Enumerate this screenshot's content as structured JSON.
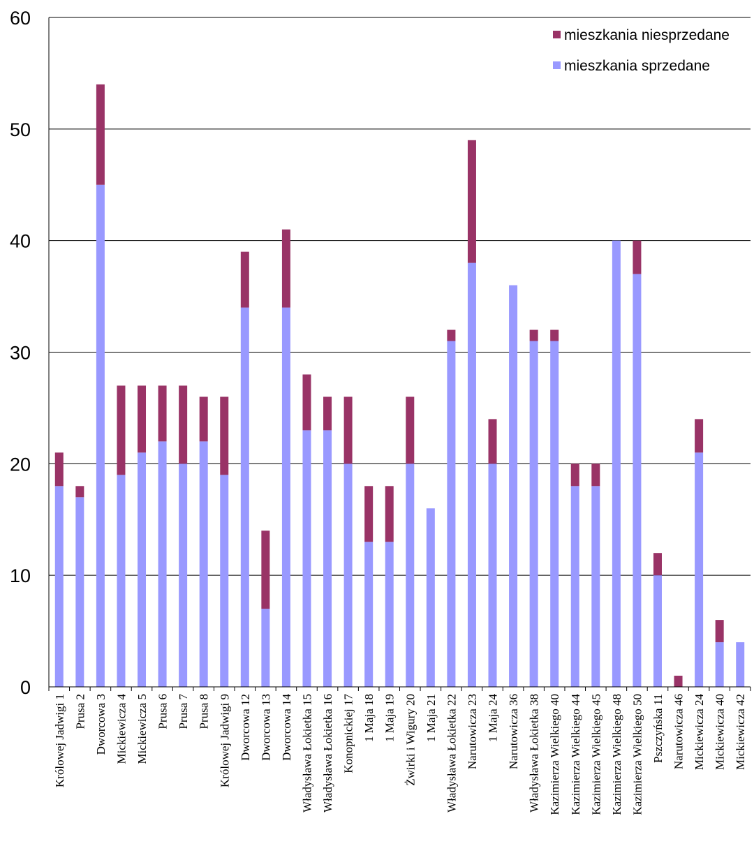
{
  "chart_data": {
    "type": "bar",
    "stacked": true,
    "grid": true,
    "legend_position": "top-right",
    "ylim": [
      0,
      60
    ],
    "yticks": [
      0,
      10,
      20,
      30,
      40,
      50,
      60
    ],
    "categories": [
      "Królowej Jadwigi 1",
      "Prusa 2",
      "Dworcowa 3",
      "Mickiewicza 4",
      "Mickiewicza 5",
      "Prusa 6",
      "Prusa 7",
      "Prusa 8",
      "Królowej Jadwigi 9",
      "Dworcowa 12",
      "Dworcowa 13",
      "Dworcowa 14",
      "Władysława Łokietka 15",
      "Władysława Łokietka 16",
      "Konopnickiej 17",
      "1 Maja 18",
      "1 Maja 19",
      "Żwirki i Wigury 20",
      "1 Maja 21",
      "Władysława Łokietka 22",
      "Narutowicza 23",
      "1 Maja 24",
      "Narutowicza 36",
      "Władysława Łokietka 38",
      "Kazimierza Wielkiego 40",
      "Kazimierza Wielkiego 44",
      "Kazimierza Wielkiego 45",
      "Kazimierza Wielkiego 48",
      "Kazimierza Wielkiego 50",
      "Pszczyńska 11",
      "Narutowicza 46",
      "Mickiewicza 24",
      "Mickiewicza 40",
      "Mickiewicza 42"
    ],
    "series": [
      {
        "name": "mieszkania sprzedane",
        "color": "#9999ff",
        "values": [
          18,
          17,
          45,
          19,
          21,
          22,
          20,
          22,
          19,
          34,
          7,
          34,
          23,
          23,
          20,
          13,
          13,
          20,
          16,
          31,
          38,
          20,
          36,
          31,
          31,
          18,
          18,
          40,
          37,
          10,
          0,
          21,
          4,
          4
        ]
      },
      {
        "name": "mieszkania niesprzedane",
        "color": "#993366",
        "values": [
          3,
          1,
          9,
          8,
          6,
          5,
          7,
          4,
          7,
          5,
          7,
          7,
          5,
          3,
          6,
          5,
          5,
          6,
          0,
          1,
          11,
          4,
          0,
          1,
          1,
          2,
          2,
          0,
          3,
          2,
          1,
          3,
          2,
          0
        ]
      }
    ]
  }
}
